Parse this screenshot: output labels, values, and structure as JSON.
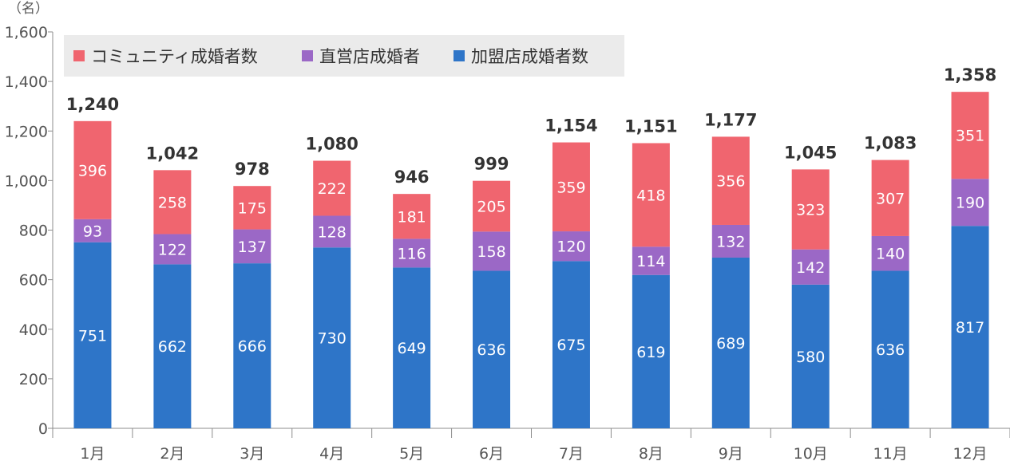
{
  "chart_data": {
    "type": "bar",
    "stacked": true,
    "unit_label": "（名）",
    "categories": [
      "1月",
      "2月",
      "3月",
      "4月",
      "5月",
      "6月",
      "7月",
      "8月",
      "9月",
      "10月",
      "11月",
      "12月"
    ],
    "series": [
      {
        "name": "加盟店成婚者数",
        "color": "#2e75c8",
        "values": [
          751,
          662,
          666,
          730,
          649,
          636,
          675,
          619,
          689,
          580,
          636,
          817
        ]
      },
      {
        "name": "直営店成婚者",
        "color": "#9b68c6",
        "values": [
          93,
          122,
          137,
          128,
          116,
          158,
          120,
          114,
          132,
          142,
          140,
          190
        ]
      },
      {
        "name": "コミュニティ成婚者数",
        "color": "#f0656f",
        "values": [
          396,
          258,
          175,
          222,
          181,
          205,
          359,
          418,
          356,
          323,
          307,
          351
        ]
      }
    ],
    "totals": [
      "1,240",
      "1,042",
      "978",
      "1,080",
      "946",
      "999",
      "1,154",
      "1,151",
      "1,177",
      "1,045",
      "1,083",
      "1,358"
    ],
    "legend_order": [
      "コミュニティ成婚者数",
      "直営店成婚者",
      "加盟店成婚者数"
    ],
    "legend_position": "top-left",
    "ylim": [
      0,
      1600
    ],
    "yticks": [
      "0",
      "200",
      "400",
      "600",
      "800",
      "1,000",
      "1,200",
      "1,400",
      "1,600"
    ],
    "grid": false
  }
}
